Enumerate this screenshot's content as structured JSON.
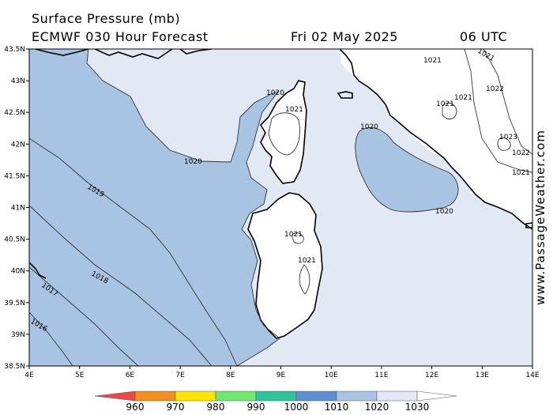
{
  "header": {
    "title": "Surface Pressure (mb)",
    "model": "ECMWF 030 Hour Forecast",
    "date": "Fri 02 May 2025",
    "time": "06 UTC"
  },
  "watermark": "www.PassageWeather.com",
  "axes": {
    "lon_labels": [
      "4E",
      "5E",
      "6E",
      "7E",
      "8E",
      "9E",
      "10E",
      "11E",
      "12E",
      "13E",
      "14E"
    ],
    "lat_labels": [
      "43.5N",
      "43N",
      "42.5N",
      "42N",
      "41.5N",
      "41N",
      "40.5N",
      "40N",
      "39.5N",
      "39N",
      "38.5N"
    ]
  },
  "colors": {
    "land": "#ffffff",
    "band_1010_1020": "#a9c4e2",
    "band_1020_1030": "#e2e9f5",
    "coast": "#000000",
    "isobar": "#333333"
  },
  "contour_labels": {
    "l1016": "1016",
    "l1017": "1017",
    "l1018": "1018",
    "l1019": "1019",
    "l1020a": "1020",
    "l1020b": "1020",
    "l1020c": "1020",
    "l1020d": "1020",
    "l1021a": "1021",
    "l1021b": "1021",
    "l1021c": "1021",
    "l1021d": "1021",
    "l1021e": "1021",
    "l1021f": "1021",
    "l1021g": "1021",
    "l1021h": "1021",
    "l1022a": "1022",
    "l1022b": "1022",
    "l1023": "1023"
  },
  "color_scale": {
    "labels": [
      "960",
      "970",
      "980",
      "990",
      "1000",
      "1010",
      "1020",
      "1030"
    ],
    "colors": [
      "#e84a4a",
      "#f2901f",
      "#ffe600",
      "#6fe86f",
      "#2fc499",
      "#5b8fd0",
      "#a9c4e2",
      "#e2e9f5"
    ]
  }
}
